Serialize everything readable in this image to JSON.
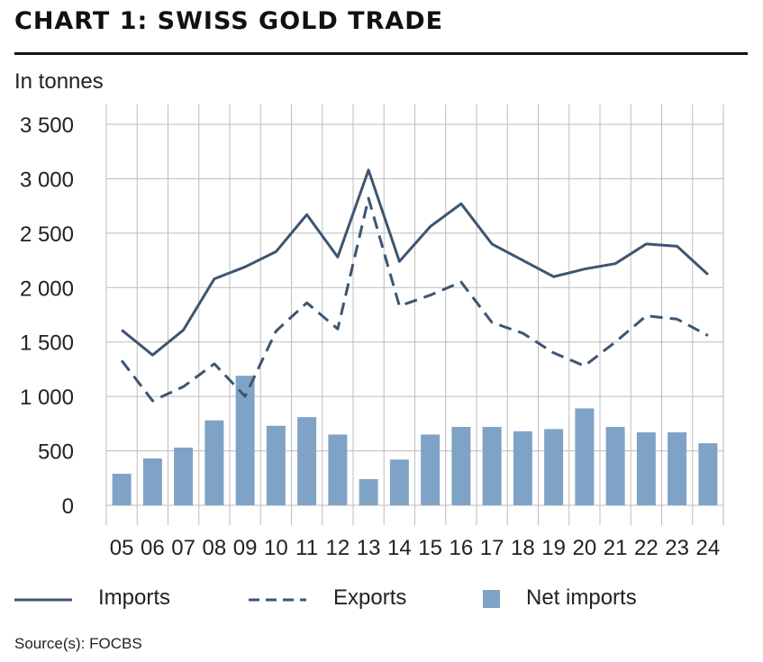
{
  "title": "CHART 1: SWISS GOLD TRADE",
  "unit_label": "In tonnes",
  "source": "Source(s): FOCBS",
  "colors": {
    "lines": "#3d5570",
    "bars": "#7fa3c6",
    "grid": "#bdbdbd"
  },
  "chart_data": {
    "type": "bar",
    "title": "CHART 1: SWISS GOLD TRADE",
    "ylabel": "In tonnes",
    "ylim": [
      0,
      3500
    ],
    "yticks": [
      0,
      500,
      1000,
      1500,
      2000,
      2500,
      3000,
      3500
    ],
    "ytick_labels": [
      "0",
      "500",
      "1 000",
      "1 500",
      "2 000",
      "2 500",
      "3 000",
      "3 500"
    ],
    "categories": [
      "05",
      "06",
      "07",
      "08",
      "09",
      "10",
      "11",
      "12",
      "13",
      "14",
      "15",
      "16",
      "17",
      "18",
      "19",
      "20",
      "21",
      "22",
      "23",
      "24"
    ],
    "grid": true,
    "legend_position": "bottom",
    "series": [
      {
        "name": "Imports",
        "type": "line",
        "style": "solid",
        "values": [
          1610,
          1380,
          1610,
          2080,
          2190,
          2330,
          2670,
          2280,
          3080,
          2240,
          2560,
          2770,
          2400,
          2250,
          2100,
          2170,
          2220,
          2400,
          2380,
          2120
        ]
      },
      {
        "name": "Exports",
        "type": "line",
        "style": "dashed",
        "values": [
          1330,
          960,
          1090,
          1300,
          1000,
          1600,
          1860,
          1620,
          2820,
          1830,
          1930,
          2050,
          1680,
          1580,
          1400,
          1280,
          1500,
          1740,
          1710,
          1560
        ]
      },
      {
        "name": "Net imports",
        "type": "bar",
        "values": [
          290,
          430,
          530,
          780,
          1190,
          730,
          810,
          650,
          240,
          420,
          650,
          720,
          720,
          680,
          700,
          890,
          720,
          670,
          670,
          570
        ]
      }
    ]
  },
  "legend": [
    {
      "label": "Imports",
      "kind": "solid-line"
    },
    {
      "label": "Exports",
      "kind": "dashed-line"
    },
    {
      "label": "Net imports",
      "kind": "bar"
    }
  ]
}
